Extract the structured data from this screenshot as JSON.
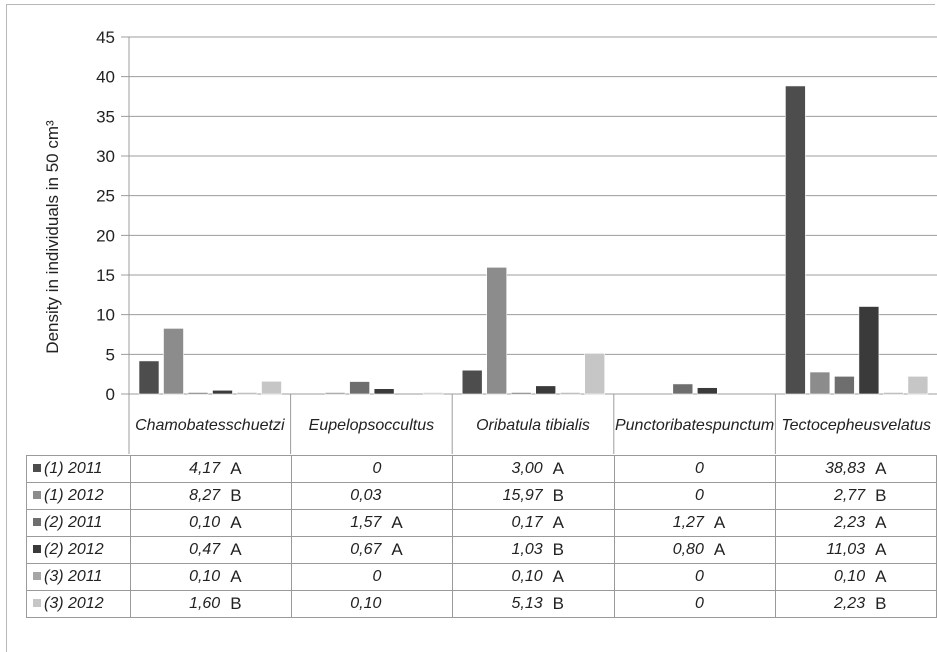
{
  "chart_data": {
    "type": "bar",
    "ylabel": "Density in individuals in 50 cm³",
    "ylim": [
      0,
      45
    ],
    "yticks": [
      0,
      5,
      10,
      15,
      20,
      25,
      30,
      35,
      40,
      45
    ],
    "grid": true,
    "categories": [
      [
        "Chamobates",
        "schuetzi"
      ],
      [
        "Eupelops",
        "occultus"
      ],
      [
        "Oribatula tibialis"
      ],
      [
        "Punctoribates",
        "punctum"
      ],
      [
        "Tectocepheus",
        "velatus"
      ]
    ],
    "series": [
      {
        "name": "(1) 2011",
        "color": "#4d4d4d",
        "values": [
          4.17,
          0,
          3.0,
          0,
          38.83
        ],
        "labels": [
          "4,17",
          "0",
          "3,00",
          "0",
          "38,83"
        ],
        "sig": [
          "A",
          "",
          "A",
          "",
          "A"
        ]
      },
      {
        "name": "(1) 2012",
        "color": "#8c8c8c",
        "values": [
          8.27,
          0.03,
          15.97,
          0,
          2.77
        ],
        "labels": [
          "8,27",
          "0,03",
          "15,97",
          "0",
          "2,77"
        ],
        "sig": [
          "B",
          "",
          "B",
          "",
          "B"
        ]
      },
      {
        "name": "(2) 2011",
        "color": "#6e6e6e",
        "values": [
          0.1,
          1.57,
          0.17,
          1.27,
          2.23
        ],
        "labels": [
          "0,10",
          "1,57",
          "0,17",
          "1,27",
          "2,23"
        ],
        "sig": [
          "A",
          "A",
          "A",
          "A",
          "A"
        ]
      },
      {
        "name": "(2) 2012",
        "color": "#3a3a3a",
        "values": [
          0.47,
          0.67,
          1.03,
          0.8,
          11.03
        ],
        "labels": [
          "0,47",
          "0,67",
          "1,03",
          "0,80",
          "11,03"
        ],
        "sig": [
          "A",
          "A",
          "B",
          "A",
          "A"
        ]
      },
      {
        "name": "(3) 2011",
        "color": "#a6a6a6",
        "values": [
          0.1,
          0,
          0.1,
          0,
          0.1
        ],
        "labels": [
          "0,10",
          "0",
          "0,10",
          "0",
          "0,10"
        ],
        "sig": [
          "A",
          "",
          "A",
          "",
          "A"
        ]
      },
      {
        "name": "(3) 2012",
        "color": "#c6c6c6",
        "values": [
          1.6,
          0.1,
          5.13,
          0,
          2.23
        ],
        "labels": [
          "1,60",
          "0,10",
          "5,13",
          "0",
          "2,23"
        ],
        "sig": [
          "B",
          "",
          "B",
          "",
          "B"
        ]
      }
    ]
  }
}
